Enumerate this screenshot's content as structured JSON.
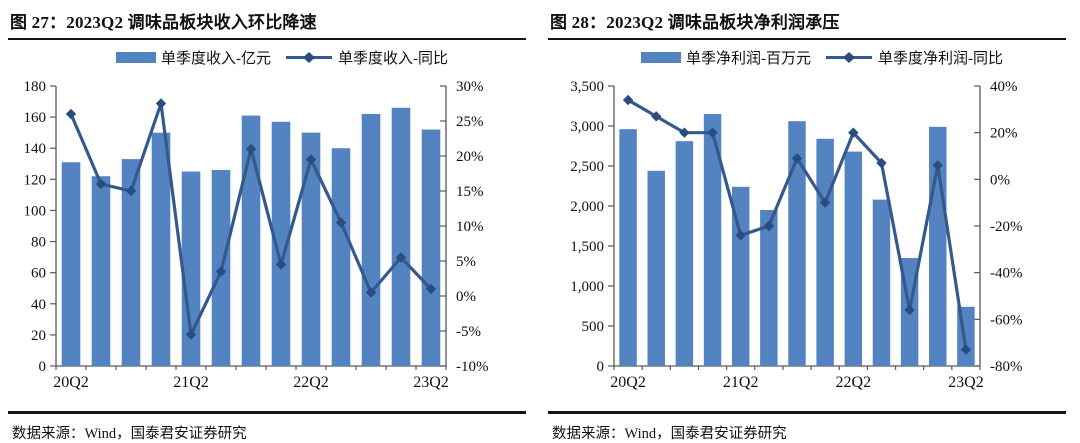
{
  "colors": {
    "bar": "#5384C1",
    "line": "#35598C",
    "marker": "#2B4C7E",
    "axis": "#595959",
    "rule": "#151515"
  },
  "chart_data": [
    {
      "type": "bar+line",
      "title": "图 27：2023Q2 调味品板块收入环比降速",
      "source": "数据来源：Wind，国泰君安证券研究",
      "categories": [
        "20Q2",
        "20Q3",
        "20Q4",
        "21Q1",
        "21Q2",
        "21Q3",
        "21Q4",
        "22Q1",
        "22Q2",
        "22Q3",
        "22Q4",
        "23Q1",
        "23Q2"
      ],
      "x_labels": [
        {
          "index": 0,
          "label": "20Q2"
        },
        {
          "index": 4,
          "label": "21Q2"
        },
        {
          "index": 8,
          "label": "22Q2"
        },
        {
          "index": 12,
          "label": "23Q2"
        }
      ],
      "series": [
        {
          "name": "单季度收入-亿元",
          "type": "bar",
          "axis": "left",
          "values": [
            131,
            122,
            133,
            150,
            125,
            126,
            161,
            157,
            150,
            140,
            162,
            166,
            152
          ]
        },
        {
          "name": "单季度收入-同比",
          "type": "line",
          "axis": "right",
          "values": [
            26,
            16,
            15,
            27.5,
            -5.5,
            3.5,
            21,
            4.5,
            19.5,
            10.5,
            0.5,
            5.5,
            1
          ]
        }
      ],
      "left_axis": {
        "min": 0,
        "max": 180,
        "tick_values": [
          0,
          20,
          40,
          60,
          80,
          100,
          120,
          140,
          160,
          180
        ],
        "tick_labels": [
          "0",
          "20",
          "40",
          "60",
          "80",
          "100",
          "120",
          "140",
          "160",
          "180"
        ]
      },
      "right_axis": {
        "min": -10,
        "max": 30,
        "tick_values": [
          -10,
          -5,
          0,
          5,
          10,
          15,
          20,
          25,
          30
        ],
        "tick_labels": [
          "-10%",
          "-5%",
          "0%",
          "5%",
          "10%",
          "15%",
          "20%",
          "25%",
          "30%"
        ]
      },
      "grid": "off",
      "legend_position": "top"
    },
    {
      "type": "bar+line",
      "title": "图 28：2023Q2 调味品板块净利润承压",
      "source": "数据来源：Wind，国泰君安证券研究",
      "categories": [
        "20Q2",
        "20Q3",
        "20Q4",
        "21Q1",
        "21Q2",
        "21Q3",
        "21Q4",
        "22Q1",
        "22Q2",
        "22Q3",
        "22Q4",
        "23Q1",
        "23Q2"
      ],
      "x_labels": [
        {
          "index": 0,
          "label": "20Q2"
        },
        {
          "index": 4,
          "label": "21Q2"
        },
        {
          "index": 8,
          "label": "22Q2"
        },
        {
          "index": 12,
          "label": "23Q2"
        }
      ],
      "series": [
        {
          "name": "单季净利润-百万元",
          "type": "bar",
          "axis": "left",
          "values": [
            2960,
            2440,
            2810,
            3150,
            2240,
            1950,
            3060,
            2840,
            2680,
            2080,
            1350,
            2990,
            740
          ]
        },
        {
          "name": "单季度净利润-同比",
          "type": "line",
          "axis": "right",
          "values": [
            34,
            27,
            20,
            20,
            -24,
            -20,
            9,
            -10,
            20,
            7,
            -56,
            6,
            -73
          ]
        }
      ],
      "left_axis": {
        "min": 0,
        "max": 3500,
        "tick_values": [
          0,
          500,
          1000,
          1500,
          2000,
          2500,
          3000,
          3500
        ],
        "tick_labels": [
          "0",
          "500",
          "1,000",
          "1,500",
          "2,000",
          "2,500",
          "3,000",
          "3,500"
        ]
      },
      "right_axis": {
        "min": -80,
        "max": 40,
        "tick_values": [
          -80,
          -60,
          -40,
          -20,
          0,
          20,
          40
        ],
        "tick_labels": [
          "-80%",
          "-60%",
          "-40%",
          "-20%",
          "0%",
          "20%",
          "40%"
        ]
      },
      "grid": "off",
      "legend_position": "top"
    }
  ]
}
